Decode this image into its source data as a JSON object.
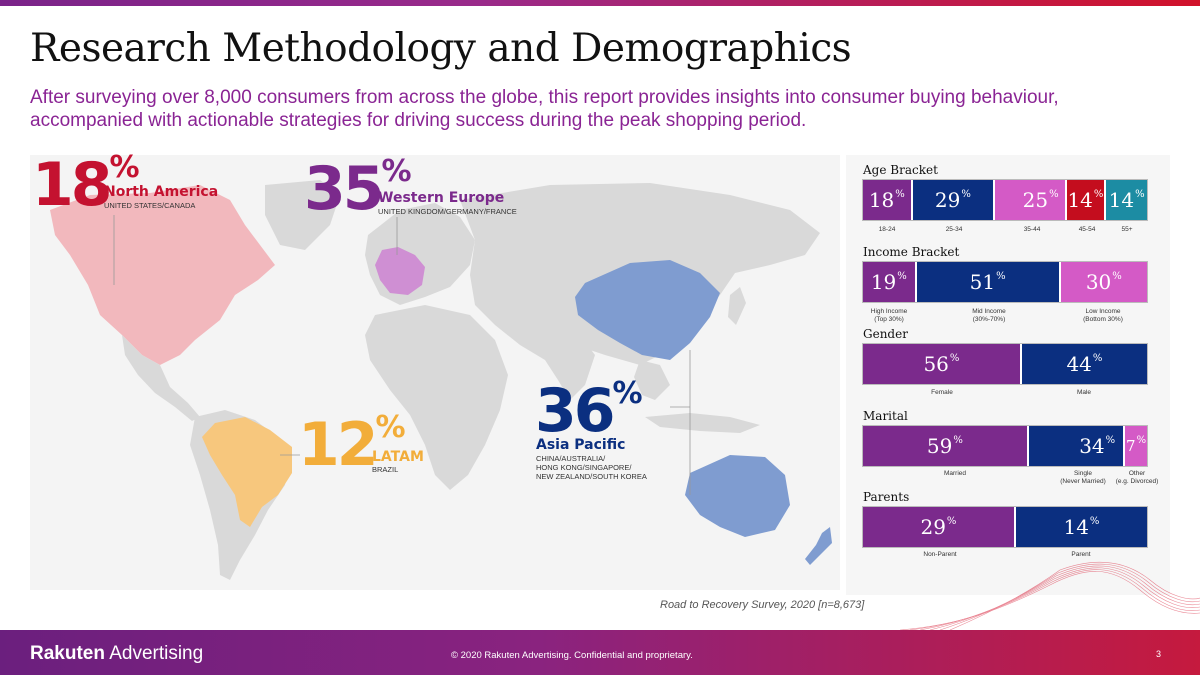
{
  "title": "Research Methodology and Demographics",
  "subtitle": "After surveying over 8,000 consumers from across the globe, this report provides insights into consumer buying behaviour, accompanied with actionable strategies for driving success during the peak shopping period.",
  "regions": [
    {
      "id": "na",
      "value": "18",
      "pct": "%",
      "name": "North America",
      "detail": "UNITED STATES/CANADA",
      "color": "#c41230",
      "fill": "#f2b8bd"
    },
    {
      "id": "we",
      "value": "35",
      "pct": "%",
      "name": "Western Europe",
      "detail": "UNITED KINGDOM/GERMANY/FRANCE",
      "color": "#7b2a8c",
      "fill": "#cf8fd3"
    },
    {
      "id": "ap",
      "value": "36",
      "pct": "%",
      "name": "Asia Pacific",
      "detail": "CHINA/AUSTRALIA/\nHONG KONG/SINGAPORE/\nNEW ZEALAND/SOUTH KOREA",
      "color": "#0b2f80",
      "fill": "#7f9cd0"
    },
    {
      "id": "la",
      "value": "12",
      "pct": "%",
      "name": "LATAM",
      "detail": "BRAZIL",
      "color": "#f2ad3a",
      "fill": "#f7c77d"
    }
  ],
  "demographics": [
    {
      "title": "Age Bracket",
      "segments": [
        {
          "value": "18",
          "pct": "%",
          "label": "18-24",
          "color": "#7b2a8c"
        },
        {
          "value": "29",
          "pct": "%",
          "label": "25-34",
          "color": "#0b2f80"
        },
        {
          "value": "25",
          "pct": "%",
          "label": "35-44",
          "color": "#d45ac6"
        },
        {
          "value": "14",
          "pct": "%",
          "label": "45-54",
          "color": "#c40d1e"
        },
        {
          "value": "14",
          "pct": "%",
          "label": "55+",
          "color": "#1c8ca3"
        }
      ]
    },
    {
      "title": "Income Bracket",
      "segments": [
        {
          "value": "19",
          "pct": "%",
          "label": "High Income\n(Top 30%)",
          "color": "#7b2a8c"
        },
        {
          "value": "51",
          "pct": "%",
          "label": "Mid Income\n(30%-70%)",
          "color": "#0b2f80"
        },
        {
          "value": "30",
          "pct": "%",
          "label": "Low Income\n(Bottom 30%)",
          "color": "#d45ac6"
        }
      ]
    },
    {
      "title": "Gender",
      "segments": [
        {
          "value": "56",
          "pct": "%",
          "label": "Female",
          "color": "#7b2a8c"
        },
        {
          "value": "44",
          "pct": "%",
          "label": "Male",
          "color": "#0b2f80"
        }
      ]
    },
    {
      "title": "Marital",
      "segments": [
        {
          "value": "59",
          "pct": "%",
          "label": "Married",
          "color": "#7b2a8c"
        },
        {
          "value": "34",
          "pct": "%",
          "label": "Single\n(Never Married)",
          "color": "#0b2f80"
        },
        {
          "value": "7",
          "pct": "%",
          "label": "Other\n(e.g. Divorced)",
          "color": "#d45ac6"
        }
      ]
    },
    {
      "title": "Parents",
      "segments": [
        {
          "value": "29",
          "pct": "%",
          "label": "Non-Parent",
          "color": "#7b2a8c"
        },
        {
          "value": "14",
          "pct": "%",
          "label": "Parent",
          "color": "#0b2f80"
        }
      ]
    }
  ],
  "source": "Road to Recovery Survey, 2020 [n=8,673]",
  "footer": {
    "logo_bold": "Rakuten",
    "logo_rest": " Advertising",
    "copyright": "© 2020 Rakuten Advertising. Confidential and proprietary.",
    "page": "3"
  },
  "colors": {
    "map_land": "#d9d9d9",
    "accent_purple": "#8a2494"
  }
}
